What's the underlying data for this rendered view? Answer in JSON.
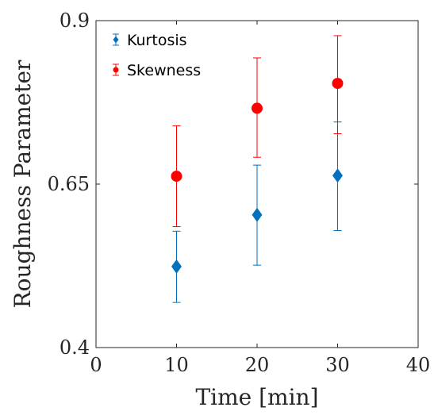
{
  "chart_data": {
    "type": "scatter",
    "xlabel": "Time [min]",
    "ylabel": "Roughness Parameter",
    "xlim": [
      0,
      40
    ],
    "ylim": [
      0.4,
      0.9
    ],
    "x_ticks": [
      0,
      10,
      20,
      30,
      40
    ],
    "y_ticks": [
      0.4,
      0.65,
      0.9
    ],
    "x_tick_labels": [
      "0",
      "10",
      "20",
      "30",
      "40"
    ],
    "y_tick_labels": [
      "0.4",
      "0.65",
      "0.9"
    ],
    "legend_position": "top-left",
    "grid": false,
    "series": [
      {
        "name": "Kurtosis",
        "marker": "diamond",
        "color": "#0072BD",
        "x": [
          10,
          20,
          30
        ],
        "y": [
          0.524,
          0.603,
          0.663
        ],
        "err_low": [
          0.469,
          0.526,
          0.579
        ],
        "err_high": [
          0.578,
          0.679,
          0.745
        ]
      },
      {
        "name": "Skewness",
        "marker": "circle",
        "color": "#FF0000",
        "x": [
          10,
          20,
          30
        ],
        "y": [
          0.662,
          0.766,
          0.804
        ],
        "err_low": [
          0.585,
          0.691,
          0.727
        ],
        "err_high": [
          0.739,
          0.843,
          0.877
        ]
      }
    ]
  }
}
